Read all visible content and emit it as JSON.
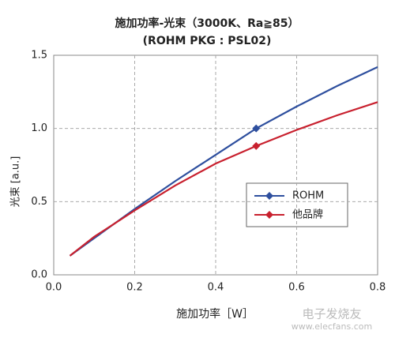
{
  "chart_data": {
    "type": "line",
    "title": "施加功率-光束（3000K、Ra≧85）",
    "subtitle": "(ROHM PKG : PSL02)",
    "x_label": "施加功率［W］",
    "y_label": "光束 [a.u.]",
    "x": [
      0.04,
      0.1,
      0.2,
      0.3,
      0.4,
      0.5,
      0.6,
      0.7,
      0.8
    ],
    "series": [
      {
        "name": "ROHM",
        "color": "#2e4f9e",
        "values": [
          0.13,
          0.25,
          0.45,
          0.64,
          0.82,
          1.0,
          1.15,
          1.29,
          1.42
        ]
      },
      {
        "name": "他品牌",
        "color": "#c8202e",
        "values": [
          0.13,
          0.26,
          0.44,
          0.61,
          0.76,
          0.88,
          0.99,
          1.09,
          1.18
        ]
      }
    ],
    "markers_at": [
      0.5
    ],
    "xlim": [
      0,
      0.8
    ],
    "xticks": [
      {
        "value": 0,
        "label": "0.0"
      },
      0.2,
      0.4,
      0.6,
      0.8
    ],
    "ylim": [
      0,
      1.5
    ],
    "yticks": [
      {
        "value": 0,
        "label": "0.0"
      },
      0.5,
      {
        "value": 1,
        "label": "1.0"
      },
      1.5
    ],
    "grid": true,
    "watermark": [
      "电子发烧友",
      "www.elecfans.com"
    ]
  }
}
